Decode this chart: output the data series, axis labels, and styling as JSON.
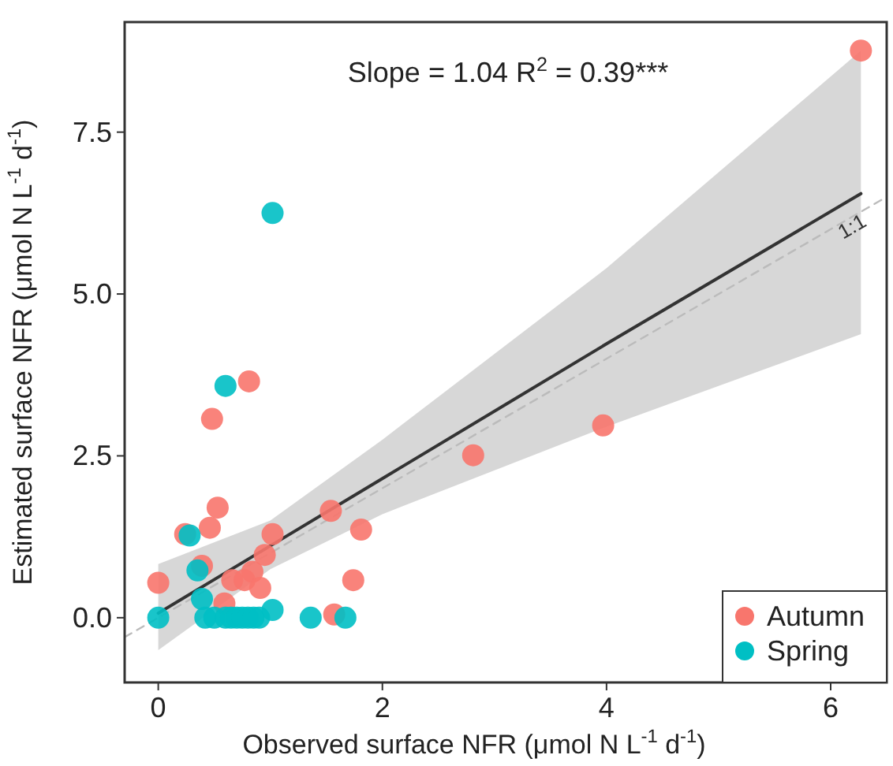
{
  "chart_data": {
    "type": "scatter",
    "xlabel": "Observed surface NFR (μmol N L$^{-1}$ d$^{-1}$)",
    "ylabel": "Estimated surface NFR (μmol N L$^{-1}$ d$^{-1}$)",
    "xlim": [
      -0.3,
      6.5
    ],
    "ylim": [
      -1.0,
      9.2
    ],
    "xticks": [
      0,
      2,
      4,
      6
    ],
    "yticks": [
      {
        "value": 0,
        "label": "0.0"
      },
      {
        "value": 2.5,
        "label": "2.5"
      },
      {
        "value": 5,
        "label": "5.0"
      },
      {
        "value": 7.5,
        "label": "7.5"
      }
    ],
    "grid": false,
    "legend": "bottom right",
    "marker": "circle",
    "annotations": [
      "Slope = 1.04 R$^{2}$ = 0.39***"
    ],
    "series": [
      {
        "type": "line",
        "color": "#333333",
        "line_style": "solid",
        "marker": "none",
        "x": [
          0,
          1,
          2,
          4,
          6.27
        ],
        "values": [
          0.07,
          1.11,
          2.15,
          4.23,
          6.55
        ],
        "lower": [
          -0.5,
          0.75,
          1.6,
          2.95,
          4.38
        ],
        "upper": [
          0.83,
          1.5,
          2.75,
          5.4,
          8.76
        ]
      },
      {
        "type": "line",
        "name": "1:1",
        "color": "#bbbbbb",
        "line_style": "dashed",
        "marker": "none",
        "x": [
          -0.3,
          6.5
        ],
        "values": [
          -0.3,
          6.5
        ]
      },
      {
        "name": "Autumn",
        "color": "#f8766d",
        "x": [
          0,
          0.24,
          0.53,
          0.46,
          0.39,
          0.59,
          0.66,
          0.77,
          0.84,
          0.91,
          0.95,
          1.02,
          1.54,
          1.81,
          1.74,
          1.57,
          0.81,
          0.48,
          6.27,
          3.97,
          2.81
        ],
        "values": [
          0.54,
          1.29,
          1.7,
          1.39,
          0.8,
          0.22,
          0.58,
          0.58,
          0.71,
          0.46,
          0.97,
          1.29,
          1.65,
          1.36,
          0.58,
          0.05,
          3.65,
          3.07,
          8.76,
          2.97,
          2.51
        ]
      },
      {
        "name": "Spring",
        "color": "#00bfc4",
        "x": [
          0,
          0.28,
          0.35,
          0.39,
          0.42,
          0.5,
          0.6,
          0.65,
          0.7,
          0.75,
          0.8,
          0.85,
          0.9,
          1.02,
          1.36,
          1.67,
          0.6,
          1.02
        ],
        "values": [
          0,
          1.27,
          0.73,
          0.29,
          0,
          0,
          0,
          0,
          0,
          0,
          0,
          0,
          0,
          0.12,
          0,
          0,
          3.58,
          6.25
        ]
      }
    ]
  }
}
